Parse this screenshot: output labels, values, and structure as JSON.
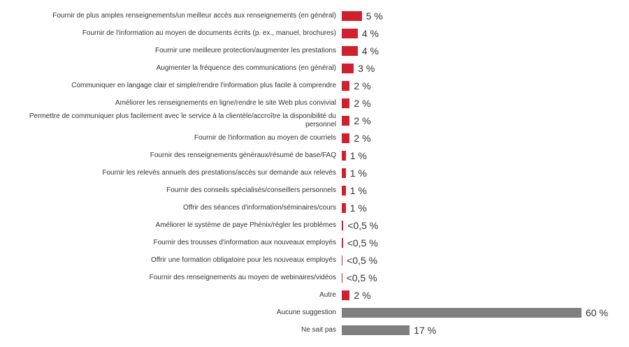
{
  "chart_data": {
    "type": "bar",
    "orientation": "horizontal",
    "categories": [
      "Fournir de plus amples renseignements/un meilleur accès aux renseignements (en général)",
      "Fournir de l'information au moyen de documents écrits (p. ex., manuel, brochures)",
      "Fournir une meilleure protection/augmenter les prestations",
      "Augmenter la fréquence des communications (en général)",
      "Communiquer en langage clair et simple/rendre l'information plus facile à comprendre",
      "Améliorer les renseignements en ligne/rendre le site Web plus convivial",
      "Permettre de communiquer plus facilement avec le service à la clientèle/accroître la disponibilité du personnel",
      "Fournir de l'information au moyen de courriels",
      "Fournir des renseignements généraux/résumé de base/FAQ",
      "Fournir les relevés annuels des prestations/accès sur demande aux relevés",
      "Fournir des conseils spécialisés/conseillers personnels",
      "Offrir des séances d'information/séminaires/cours",
      "Améliorer le système de paye Phénix/régler les problèmes",
      "Fournir des trousses d'information aux nouveaux employés",
      "Offrir une formation obligatoire pour les nouveaux employés",
      "Fournir des renseignements au moyen de webinaires/vidéos",
      "Autre",
      "Aucune suggestion",
      "Ne sait pas"
    ],
    "values": [
      5,
      4,
      4,
      3,
      2,
      2,
      2,
      2,
      1,
      1,
      1,
      1,
      0.4,
      0.3,
      0.2,
      0.1,
      2,
      60,
      17
    ],
    "value_labels": [
      "5 %",
      "4 %",
      "4 %",
      "3 %",
      "2 %",
      "2 %",
      "2 %",
      "2 %",
      "1 %",
      "1 %",
      "1 %",
      "1 %",
      "<0,5 %",
      "<0,5 %",
      "<0,5 %",
      "<0,5 %",
      "2 %",
      "60 %",
      "17 %"
    ],
    "colors": [
      "#d0202e",
      "#d0202e",
      "#d0202e",
      "#d0202e",
      "#d0202e",
      "#d0202e",
      "#d0202e",
      "#d0202e",
      "#d0202e",
      "#d0202e",
      "#d0202e",
      "#d0202e",
      "#d0202e",
      "#d0202e",
      "#d0202e",
      "#d0202e",
      "#d0202e",
      "#7f7f7f",
      "#7f7f7f"
    ],
    "xlim": [
      0,
      60
    ]
  }
}
